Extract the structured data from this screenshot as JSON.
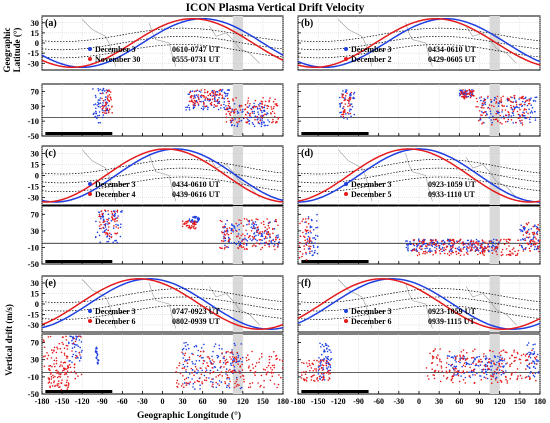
{
  "figure": {
    "title": "ICON Plasma Vertical Drift Velocity",
    "y_label_map": "Geographic\nLatitude (°)",
    "y_label_drift": "Vertical drift (m/s)",
    "x_label": "Geographic Longitude (°)",
    "x_ticks": [
      "-180",
      "-150",
      "-120",
      "-90",
      "-60",
      "-30",
      "0",
      "30",
      "60",
      "90",
      "120",
      "150",
      "180"
    ],
    "map_y_ticks": [
      "30",
      "15",
      "0",
      "-15",
      "-30"
    ],
    "drift_y_ticks": [
      "70",
      "30",
      "-10",
      "-50"
    ],
    "colors": {
      "blue": "#1f3fe0",
      "red": "#e41a1c",
      "shade": "#d9d9d9",
      "bar": "#000000"
    }
  },
  "chart_data": [
    {
      "panel": "a",
      "type": "scatter",
      "xlim": [
        -180,
        180
      ],
      "map_ylim": [
        -40,
        40
      ],
      "drift_ylim": [
        -50,
        90
      ],
      "legend": [
        {
          "color": "blue",
          "date": "December 3",
          "time": "0610-0747 UT"
        },
        {
          "color": "red",
          "date": "November 30",
          "time": "0555-0731 UT"
        }
      ],
      "shaded_lon": [
        105,
        120
      ],
      "zero_line": 0,
      "series": [
        {
          "name": "December 3",
          "color": "blue",
          "clusters": [
            [
              -104,
              -92,
              -20,
              85
            ],
            [
              -90,
              -80,
              0,
              80
            ],
            [
              35,
              100,
              20,
              75
            ],
            [
              100,
              160,
              -25,
              40
            ]
          ]
        },
        {
          "name": "November 30",
          "color": "red",
          "clusters": [
            [
              -92,
              -75,
              10,
              75
            ],
            [
              40,
              90,
              30,
              75
            ],
            [
              95,
              175,
              -15,
              55
            ]
          ]
        }
      ]
    },
    {
      "panel": "b",
      "type": "scatter",
      "xlim": [
        -180,
        180
      ],
      "map_ylim": [
        -40,
        40
      ],
      "drift_ylim": [
        -50,
        90
      ],
      "legend": [
        {
          "color": "blue",
          "date": "December 3",
          "time": "0434-0610 UT"
        },
        {
          "color": "red",
          "date": "December 2",
          "time": "0429-0605 UT"
        }
      ],
      "shaded_lon": [
        105,
        120
      ],
      "zero_line": 0,
      "series": [
        {
          "name": "December 3",
          "color": "blue",
          "clusters": [
            [
              -118,
              -95,
              -5,
              75
            ],
            [
              60,
              80,
              55,
              75
            ],
            [
              90,
              175,
              -15,
              55
            ]
          ]
        },
        {
          "name": "December 2",
          "color": "red",
          "clusters": [
            [
              -115,
              -100,
              0,
              70
            ],
            [
              62,
              82,
              50,
              75
            ],
            [
              85,
              165,
              -20,
              60
            ]
          ]
        }
      ]
    },
    {
      "panel": "c",
      "type": "scatter",
      "xlim": [
        -180,
        180
      ],
      "map_ylim": [
        -40,
        40
      ],
      "drift_ylim": [
        -50,
        90
      ],
      "legend": [
        {
          "color": "blue",
          "date": "December 3",
          "time": "0434-0610 UT"
        },
        {
          "color": "red",
          "date": "December 4",
          "time": "0439-0616 UT"
        }
      ],
      "shaded_lon": [
        105,
        120
      ],
      "zero_line": 0,
      "series": [
        {
          "name": "December 3",
          "color": "blue",
          "clusters": [
            [
              -100,
              -60,
              0,
              85
            ],
            [
              40,
              55,
              50,
              65
            ],
            [
              90,
              175,
              -10,
              55
            ]
          ]
        },
        {
          "name": "December 4",
          "color": "red",
          "clusters": [
            [
              -95,
              -65,
              10,
              80
            ],
            [
              30,
              50,
              35,
              55
            ],
            [
              85,
              175,
              -15,
              60
            ]
          ]
        }
      ]
    },
    {
      "panel": "d",
      "type": "scatter",
      "xlim": [
        -180,
        180
      ],
      "map_ylim": [
        -40,
        40
      ],
      "drift_ylim": [
        -50,
        90
      ],
      "legend": [
        {
          "color": "blue",
          "date": "December 3",
          "time": "0923-1059 UT"
        },
        {
          "color": "red",
          "date": "December 5",
          "time": "0933-1110 UT"
        }
      ],
      "shaded_lon": [
        105,
        120
      ],
      "zero_line": 0,
      "series": [
        {
          "name": "December 3",
          "color": "blue",
          "clusters": [
            [
              -170,
              -150,
              -30,
              70
            ],
            [
              -20,
              120,
              -20,
              10
            ],
            [
              150,
              178,
              -15,
              45
            ]
          ]
        },
        {
          "name": "December 5",
          "color": "red",
          "clusters": [
            [
              -178,
              -160,
              -40,
              60
            ],
            [
              -10,
              150,
              -30,
              10
            ],
            [
              155,
              180,
              -20,
              50
            ]
          ]
        }
      ]
    },
    {
      "panel": "e",
      "type": "scatter",
      "xlim": [
        -180,
        180
      ],
      "map_ylim": [
        -40,
        40
      ],
      "drift_ylim": [
        -50,
        90
      ],
      "legend": [
        {
          "color": "blue",
          "date": "December 3",
          "time": "0747-0923 UT"
        },
        {
          "color": "red",
          "date": "December 6",
          "time": "0802-0939 UT"
        }
      ],
      "shaded_lon": [
        105,
        120
      ],
      "zero_line": 0,
      "series": [
        {
          "name": "December 3",
          "color": "blue",
          "clusters": [
            [
              -140,
              -120,
              20,
              85
            ],
            [
              -100,
              -95,
              20,
              60
            ],
            [
              30,
              120,
              -40,
              70
            ]
          ]
        },
        {
          "name": "December 6",
          "color": "red",
          "clusters": [
            [
              -180,
              -120,
              -30,
              85
            ],
            [
              -170,
              -140,
              -40,
              20
            ],
            [
              20,
              180,
              -35,
              50
            ]
          ]
        }
      ]
    },
    {
      "panel": "f",
      "type": "scatter",
      "xlim": [
        -180,
        180
      ],
      "map_ylim": [
        -40,
        40
      ],
      "drift_ylim": [
        -50,
        90
      ],
      "legend": [
        {
          "color": "blue",
          "date": "December 3",
          "time": "0923-1059 UT"
        },
        {
          "color": "red",
          "date": "December 6",
          "time": "0939-1115 UT"
        }
      ],
      "shaded_lon": [
        105,
        120
      ],
      "zero_line": 0,
      "series": [
        {
          "name": "December 3",
          "color": "blue",
          "clusters": [
            [
              -150,
              -140,
              -20,
              70
            ],
            [
              -140,
              -130,
              0,
              70
            ],
            [
              40,
              130,
              -15,
              40
            ],
            [
              160,
              178,
              -10,
              70
            ]
          ]
        },
        {
          "name": "December 6",
          "color": "red",
          "clusters": [
            [
              -175,
              -130,
              -20,
              30
            ],
            [
              10,
              175,
              -25,
              55
            ]
          ]
        }
      ]
    }
  ]
}
